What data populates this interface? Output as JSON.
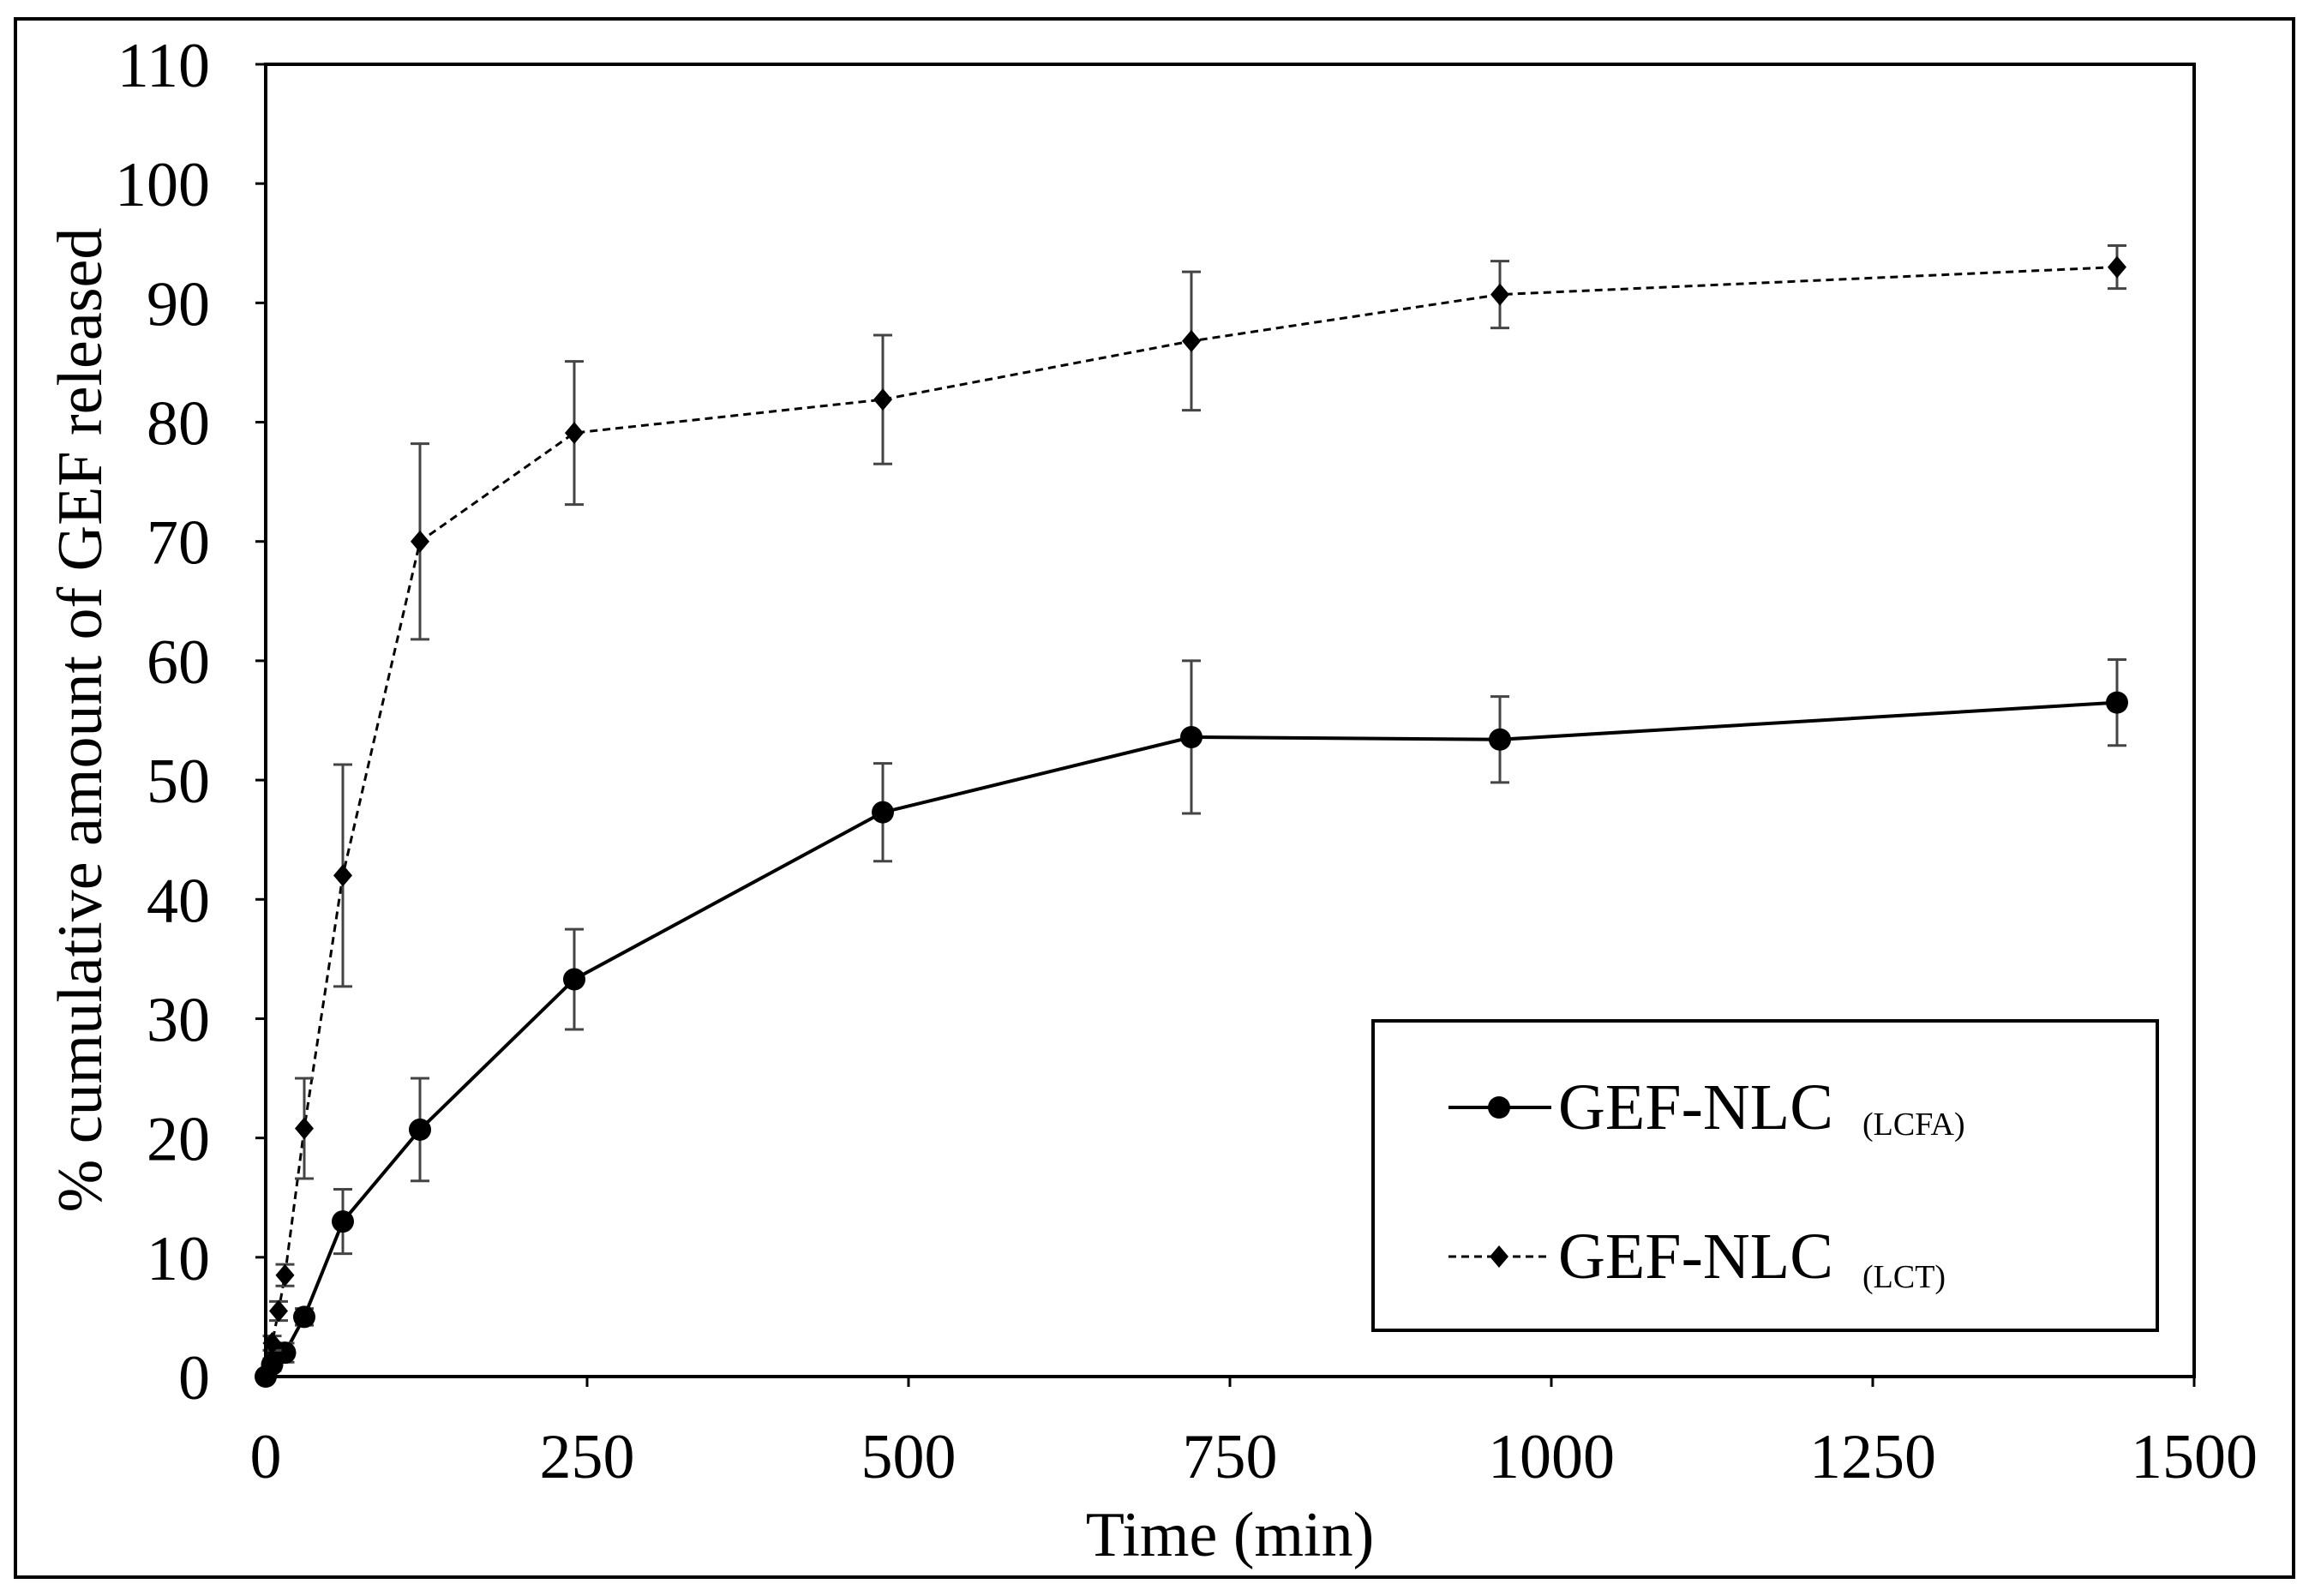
{
  "chart_data": {
    "type": "line",
    "title": "",
    "xlabel": "Time (min)",
    "ylabel": "% cumulative amount of GEF released",
    "xlim": [
      0,
      1500
    ],
    "ylim": [
      0,
      110
    ],
    "xticks": [
      0,
      250,
      500,
      750,
      1000,
      1250,
      1500
    ],
    "yticks": [
      0,
      10,
      20,
      30,
      40,
      50,
      60,
      70,
      80,
      90,
      100,
      110
    ],
    "grid": false,
    "legend_position": "bottom-right",
    "series": [
      {
        "name": "GEF-NLC",
        "subscript": "(LCFA)",
        "marker": "circle",
        "line_style": "solid",
        "x": [
          0,
          5,
          10,
          15,
          30,
          60,
          120,
          240,
          480,
          720,
          960,
          1440
        ],
        "y": [
          0,
          1,
          2,
          2,
          5,
          13,
          20.7,
          33.3,
          47.3,
          53.6,
          53.4,
          56.5
        ],
        "error": [
          0,
          0.5,
          0.8,
          0.8,
          0.7,
          2.7,
          4.3,
          4.2,
          4.1,
          6.4,
          3.6,
          3.6
        ]
      },
      {
        "name": "GEF-NLC",
        "subscript": "(LCT)",
        "marker": "diamond",
        "line_style": "dashed",
        "x": [
          0,
          5,
          10,
          15,
          30,
          60,
          120,
          240,
          480,
          720,
          960,
          1440
        ],
        "y": [
          0,
          2.8,
          5.5,
          8.5,
          20.8,
          42,
          70,
          79.1,
          81.9,
          86.8,
          90.7,
          93
        ],
        "error": [
          0,
          0.6,
          0.8,
          0.9,
          4.2,
          9.3,
          8.2,
          6,
          5.4,
          5.8,
          2.8,
          1.8
        ]
      }
    ]
  }
}
